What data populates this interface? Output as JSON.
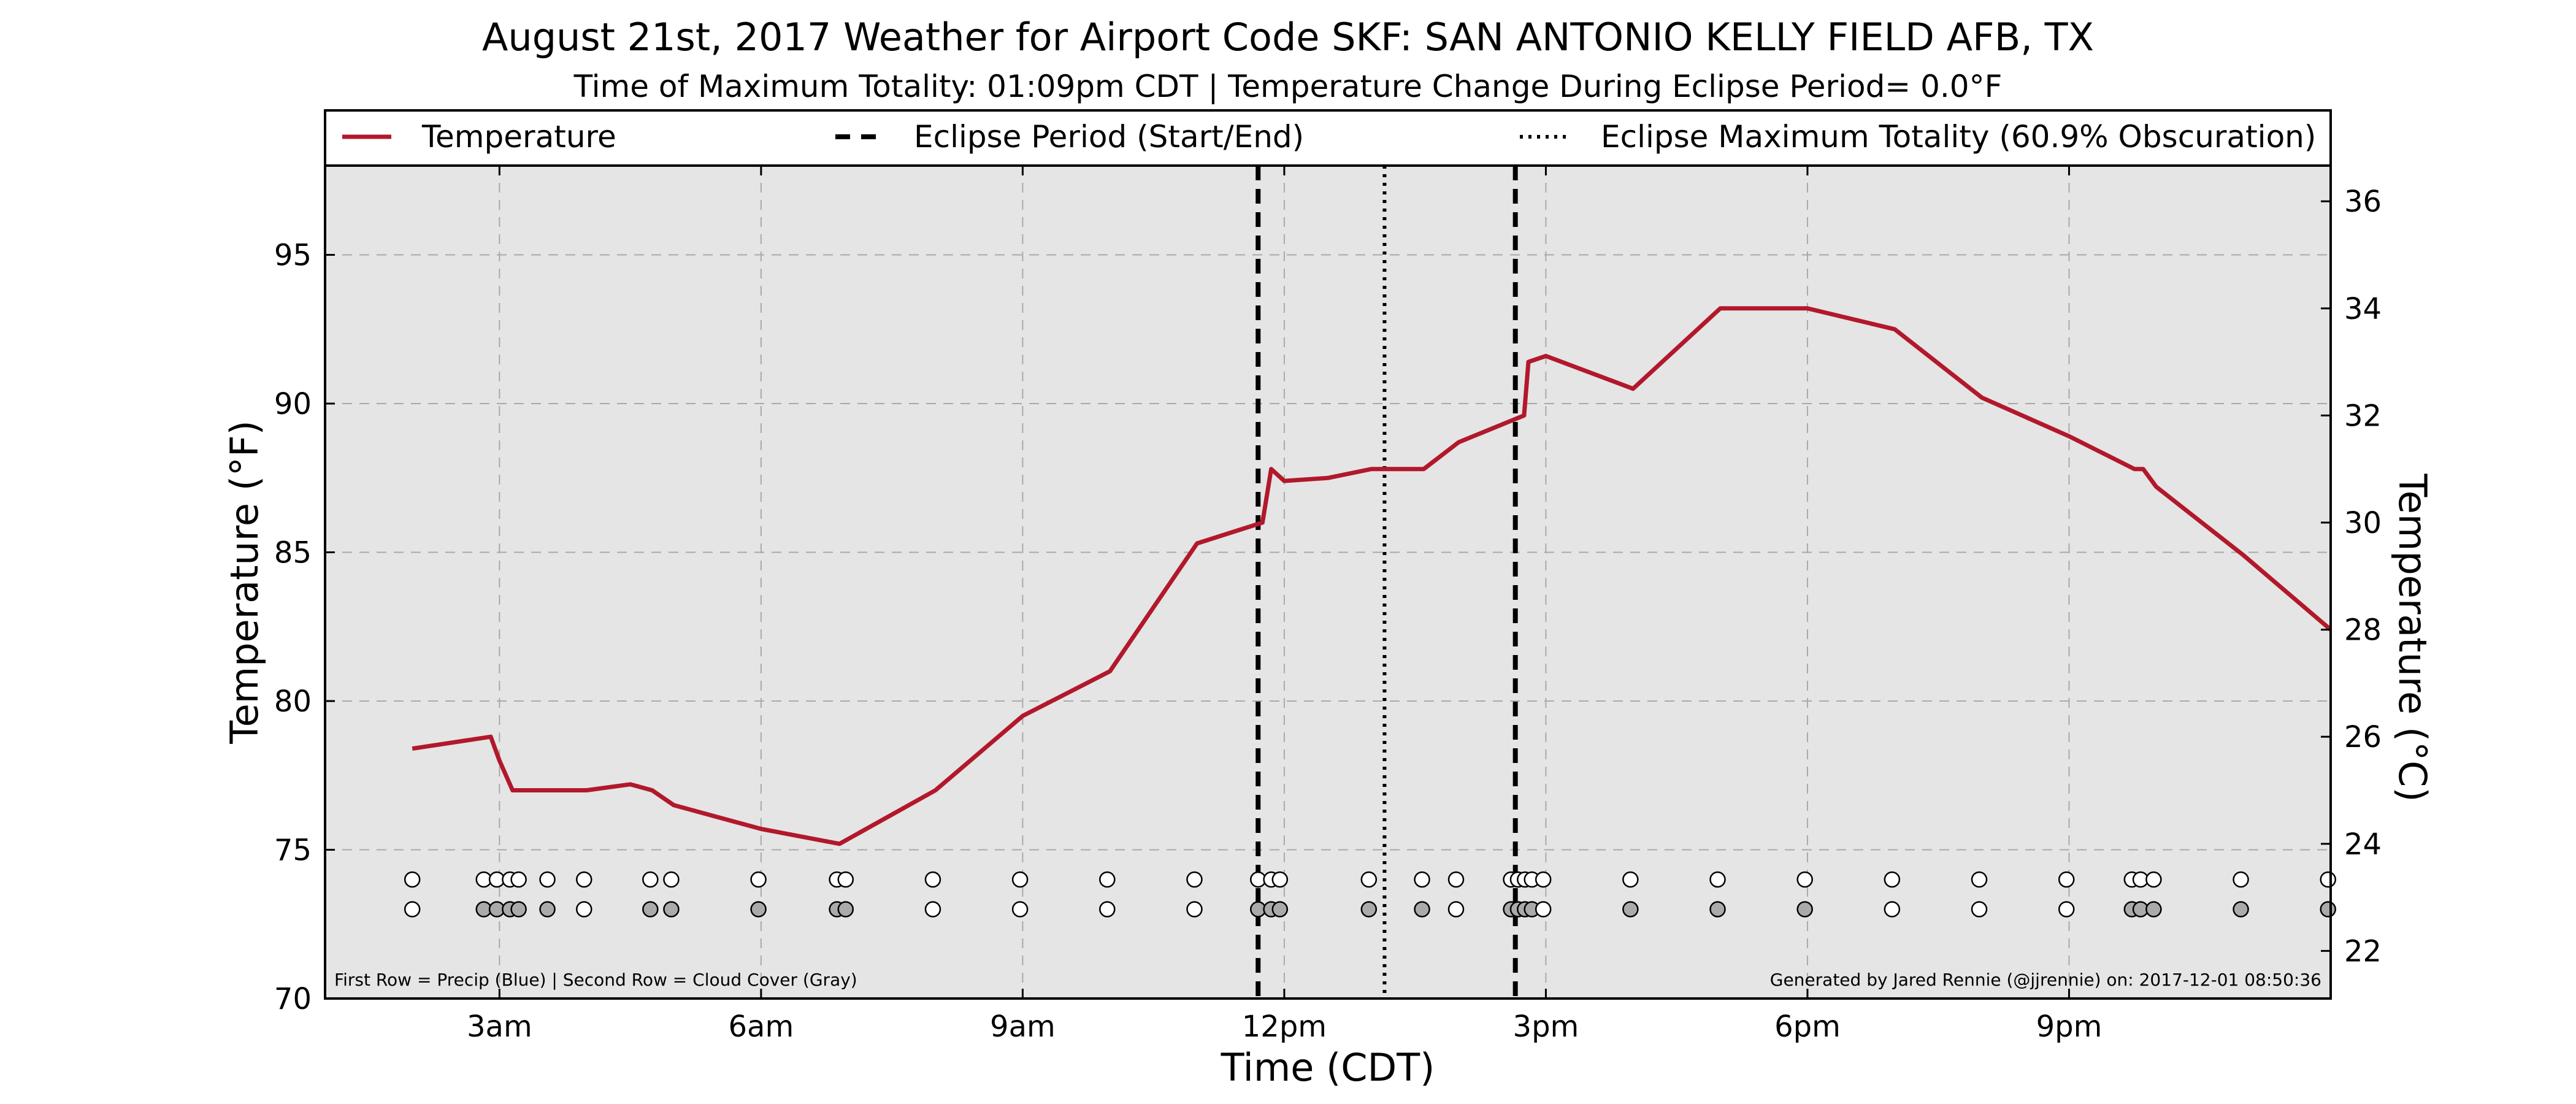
{
  "chart_data": {
    "type": "line",
    "title": "August 21st, 2017 Weather for Airport Code SKF: SAN ANTONIO KELLY FIELD AFB, TX",
    "subtitle": "Time of Maximum Totality: 01:09pm CDT | Temperature Change During Eclipse Period= 0.0°F",
    "xlabel": "Time (CDT)",
    "ylabel": "Temperature (°F)",
    "ylabel_right": "Temperature (°C)",
    "x_unit": "hours since midnight CDT",
    "xlim": [
      1,
      24
    ],
    "ylim": [
      70,
      98
    ],
    "ylim_right": [
      21.111,
      36.667
    ],
    "grid": true,
    "legend_placement": "top",
    "x_ticks": [
      {
        "value": 3,
        "label": "3am"
      },
      {
        "value": 6,
        "label": "6am"
      },
      {
        "value": 9,
        "label": "9am"
      },
      {
        "value": 12,
        "label": "12pm"
      },
      {
        "value": 15,
        "label": "3pm"
      },
      {
        "value": 18,
        "label": "6pm"
      },
      {
        "value": 21,
        "label": "9pm"
      }
    ],
    "y_ticks": [
      {
        "value": 70,
        "label": "70"
      },
      {
        "value": 75,
        "label": "75"
      },
      {
        "value": 80,
        "label": "80"
      },
      {
        "value": 85,
        "label": "85"
      },
      {
        "value": 90,
        "label": "90"
      },
      {
        "value": 95,
        "label": "95"
      }
    ],
    "y_ticks_right": [
      {
        "value": 22,
        "label": "22"
      },
      {
        "value": 24,
        "label": "24"
      },
      {
        "value": 26,
        "label": "26"
      },
      {
        "value": 28,
        "label": "28"
      },
      {
        "value": 30,
        "label": "30"
      },
      {
        "value": 32,
        "label": "32"
      },
      {
        "value": 34,
        "label": "34"
      },
      {
        "value": 36,
        "label": "36"
      }
    ],
    "series": [
      {
        "name": "Temperature",
        "color": "#b2182b",
        "x": [
          2.0,
          2.9,
          3.0,
          3.15,
          3.5,
          3.85,
          4.0,
          4.5,
          4.75,
          5.0,
          6.0,
          6.9,
          8.0,
          9.0,
          10.0,
          11.0,
          11.75,
          11.85,
          12.0,
          12.5,
          13.0,
          13.6,
          14.0,
          14.75,
          14.8,
          15.0,
          16.0,
          17.0,
          18.0,
          19.0,
          20.0,
          21.0,
          21.75,
          21.85,
          22.0,
          23.0,
          24.0
        ],
        "y": [
          78.4,
          78.8,
          78.0,
          77.0,
          77.0,
          77.0,
          77.0,
          77.2,
          77.0,
          76.5,
          75.7,
          75.2,
          77.0,
          79.5,
          81.0,
          85.3,
          86.0,
          87.8,
          87.4,
          87.5,
          87.8,
          87.8,
          88.7,
          89.6,
          91.4,
          91.6,
          90.5,
          93.2,
          93.2,
          92.5,
          90.2,
          88.9,
          87.8,
          87.8,
          87.2,
          84.9,
          82.4
        ]
      }
    ],
    "eclipse": {
      "start": 11.7,
      "end": 14.65,
      "max_totality": 13.15,
      "period_label": "Eclipse Period (Start/End)",
      "max_label": "Eclipse Maximum Totality (60.9% Obscuration)"
    },
    "markers": {
      "row1_y": 74.0,
      "row2_y": 73.0,
      "row1": [
        {
          "x": 2.0,
          "fill": "#ffffff"
        },
        {
          "x": 2.82,
          "fill": "#ffffff"
        },
        {
          "x": 2.97,
          "fill": "#ffffff"
        },
        {
          "x": 3.12,
          "fill": "#ffffff"
        },
        {
          "x": 3.22,
          "fill": "#ffffff"
        },
        {
          "x": 3.55,
          "fill": "#ffffff"
        },
        {
          "x": 3.97,
          "fill": "#ffffff"
        },
        {
          "x": 4.73,
          "fill": "#ffffff"
        },
        {
          "x": 4.97,
          "fill": "#ffffff"
        },
        {
          "x": 5.97,
          "fill": "#ffffff"
        },
        {
          "x": 6.87,
          "fill": "#ffffff"
        },
        {
          "x": 6.97,
          "fill": "#ffffff"
        },
        {
          "x": 7.97,
          "fill": "#ffffff"
        },
        {
          "x": 8.97,
          "fill": "#ffffff"
        },
        {
          "x": 9.97,
          "fill": "#ffffff"
        },
        {
          "x": 10.97,
          "fill": "#ffffff"
        },
        {
          "x": 11.7,
          "fill": "#ffffff"
        },
        {
          "x": 11.85,
          "fill": "#ffffff"
        },
        {
          "x": 11.95,
          "fill": "#ffffff"
        },
        {
          "x": 12.97,
          "fill": "#ffffff"
        },
        {
          "x": 13.58,
          "fill": "#ffffff"
        },
        {
          "x": 13.97,
          "fill": "#ffffff"
        },
        {
          "x": 14.6,
          "fill": "#ffffff"
        },
        {
          "x": 14.68,
          "fill": "#ffffff"
        },
        {
          "x": 14.76,
          "fill": "#ffffff"
        },
        {
          "x": 14.84,
          "fill": "#ffffff"
        },
        {
          "x": 14.97,
          "fill": "#ffffff"
        },
        {
          "x": 15.97,
          "fill": "#ffffff"
        },
        {
          "x": 16.97,
          "fill": "#ffffff"
        },
        {
          "x": 17.97,
          "fill": "#ffffff"
        },
        {
          "x": 18.97,
          "fill": "#ffffff"
        },
        {
          "x": 19.97,
          "fill": "#ffffff"
        },
        {
          "x": 20.97,
          "fill": "#ffffff"
        },
        {
          "x": 21.72,
          "fill": "#ffffff"
        },
        {
          "x": 21.82,
          "fill": "#ffffff"
        },
        {
          "x": 21.97,
          "fill": "#ffffff"
        },
        {
          "x": 22.97,
          "fill": "#ffffff"
        },
        {
          "x": 23.97,
          "fill": "#ffffff"
        }
      ],
      "row2": [
        {
          "x": 2.0,
          "fill": "#ffffff"
        },
        {
          "x": 2.82,
          "fill": "#aaaaaa"
        },
        {
          "x": 2.97,
          "fill": "#aaaaaa"
        },
        {
          "x": 3.12,
          "fill": "#aaaaaa"
        },
        {
          "x": 3.22,
          "fill": "#aaaaaa"
        },
        {
          "x": 3.55,
          "fill": "#aaaaaa"
        },
        {
          "x": 3.97,
          "fill": "#ffffff"
        },
        {
          "x": 4.73,
          "fill": "#aaaaaa"
        },
        {
          "x": 4.97,
          "fill": "#aaaaaa"
        },
        {
          "x": 5.97,
          "fill": "#aaaaaa"
        },
        {
          "x": 6.87,
          "fill": "#aaaaaa"
        },
        {
          "x": 6.97,
          "fill": "#aaaaaa"
        },
        {
          "x": 7.97,
          "fill": "#ffffff"
        },
        {
          "x": 8.97,
          "fill": "#ffffff"
        },
        {
          "x": 9.97,
          "fill": "#ffffff"
        },
        {
          "x": 10.97,
          "fill": "#ffffff"
        },
        {
          "x": 11.7,
          "fill": "#aaaaaa"
        },
        {
          "x": 11.85,
          "fill": "#aaaaaa"
        },
        {
          "x": 11.95,
          "fill": "#aaaaaa"
        },
        {
          "x": 12.97,
          "fill": "#aaaaaa"
        },
        {
          "x": 13.58,
          "fill": "#aaaaaa"
        },
        {
          "x": 13.97,
          "fill": "#ffffff"
        },
        {
          "x": 14.6,
          "fill": "#aaaaaa"
        },
        {
          "x": 14.68,
          "fill": "#aaaaaa"
        },
        {
          "x": 14.76,
          "fill": "#aaaaaa"
        },
        {
          "x": 14.84,
          "fill": "#aaaaaa"
        },
        {
          "x": 14.97,
          "fill": "#ffffff"
        },
        {
          "x": 15.97,
          "fill": "#aaaaaa"
        },
        {
          "x": 16.97,
          "fill": "#aaaaaa"
        },
        {
          "x": 17.97,
          "fill": "#aaaaaa"
        },
        {
          "x": 18.97,
          "fill": "#ffffff"
        },
        {
          "x": 19.97,
          "fill": "#ffffff"
        },
        {
          "x": 20.97,
          "fill": "#ffffff"
        },
        {
          "x": 21.72,
          "fill": "#aaaaaa"
        },
        {
          "x": 21.82,
          "fill": "#aaaaaa"
        },
        {
          "x": 21.97,
          "fill": "#aaaaaa"
        },
        {
          "x": 22.97,
          "fill": "#aaaaaa"
        },
        {
          "x": 23.97,
          "fill": "#aaaaaa"
        }
      ]
    },
    "notes": {
      "left": "First Row = Precip (Blue) | Second Row = Cloud Cover (Gray)",
      "right": "Generated by Jared Rennie (@jjrennie) on: 2017-12-01 08:50:36"
    },
    "colors": {
      "plot_background": "#e5e5e5",
      "grid": "#a9a9a9",
      "eclipse_lines": "#000000"
    }
  }
}
